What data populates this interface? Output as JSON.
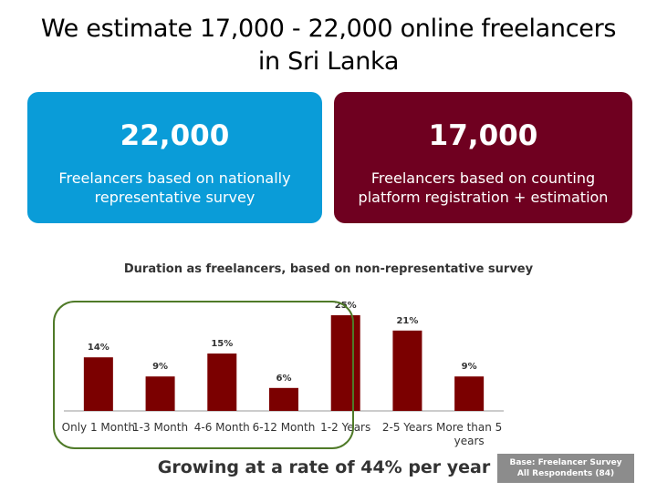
{
  "title": {
    "line1": "We estimate 17,000 - 22,000 online freelancers",
    "line2": "in Sri Lanka"
  },
  "cards": [
    {
      "value": "22,000",
      "line1": "Freelancers based on nationally",
      "line2": "representative survey",
      "color": "#0a9cd8"
    },
    {
      "value": "17,000",
      "line1": "Freelancers based on counting",
      "line2": "platform registration + estimation",
      "color": "#6f0020"
    }
  ],
  "chart_data": {
    "type": "bar",
    "title": "Duration as freelancers, based on non-representative survey",
    "categories": [
      "Only 1 Month",
      "1-3 Month",
      "4-6 Month",
      "6-12 Month",
      "1-2 Years",
      "2-5 Years",
      "More than 5 years"
    ],
    "values": [
      14,
      9,
      15,
      6,
      25,
      21,
      9
    ],
    "data_labels": [
      "14%",
      "9%",
      "15%",
      "6%",
      "25%",
      "21%",
      "9%"
    ],
    "unit": "%",
    "ylim": [
      0,
      25
    ],
    "bar_color": "#7b0000",
    "highlight_color": "#4f7a28",
    "grid": false
  },
  "subhead": "Growing at a rate of 44% per year",
  "base_note": {
    "line1": "Base: Freelancer Survey",
    "line2": "All Respondents (84)"
  }
}
